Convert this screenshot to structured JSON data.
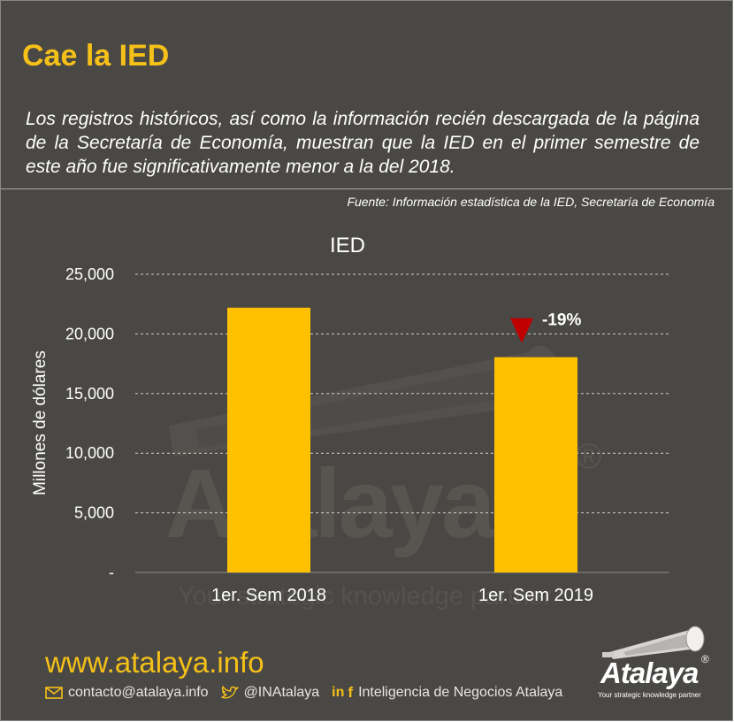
{
  "header": {
    "title": "Cae la IED",
    "intro": "Los registros históricos, así como la información recién descargada de la página de la Secretaría de Economía, muestran que la IED en el primer semestre de este año fue significativamente menor a la del 2018.",
    "source": "Fuente: Información estadística de la IED, Secretaría de Economía"
  },
  "chart_data": {
    "type": "bar",
    "title": "IED",
    "xlabel": "",
    "ylabel": "Millones de dólares",
    "categories": [
      "1er. Sem 2018",
      "1er. Sem 2019"
    ],
    "values": [
      22200,
      18050
    ],
    "ylim": [
      0,
      25000
    ],
    "yticks": [
      0,
      5000,
      10000,
      15000,
      20000,
      25000
    ],
    "ytick_labels": [
      "-",
      "5,000",
      "10,000",
      "15,000",
      "20,000",
      "25,000"
    ],
    "grid": true,
    "bar_color": "#ffc000",
    "annotation": {
      "label": "-19%",
      "category": "1er. Sem 2019",
      "marker": "down-triangle-icon",
      "marker_color": "#c00000"
    }
  },
  "watermark": {
    "text": "Atalaya",
    "registered": "®",
    "tagline": "Your strategic knowledge partner"
  },
  "footer": {
    "website": "www.atalaya.info",
    "email": "contacto@atalaya.info",
    "twitter": "@INAtalaya",
    "linkedin_icon_text": "in",
    "facebook_icon_text": "f",
    "company": "Inteligencia de Negocios Atalaya",
    "icons": [
      "email-icon",
      "twitter-icon",
      "linkedin-icon",
      "facebook-icon"
    ]
  },
  "brand": {
    "name": "Atalaya",
    "registered": "®",
    "tagline": "Your strategic knowledge partner",
    "icon": "telescope-icon"
  },
  "colors": {
    "background": "#4a4845",
    "accent": "#f5c118",
    "bar": "#ffc000",
    "decline": "#c00000"
  }
}
